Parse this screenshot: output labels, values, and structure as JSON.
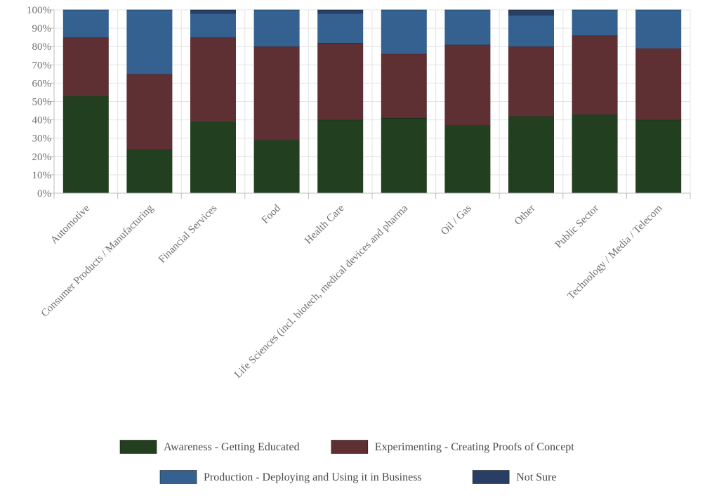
{
  "chart_data": {
    "type": "bar",
    "stacked": true,
    "title": "",
    "xlabel": "",
    "ylabel": "",
    "ylim": [
      0,
      100
    ],
    "y_ticks": [
      "0%",
      "10%",
      "20%",
      "30%",
      "40%",
      "50%",
      "60%",
      "70%",
      "80%",
      "90%",
      "100%"
    ],
    "grid": true,
    "legend_position": "bottom",
    "categories": [
      "Automotive",
      "Consumer Products / Manufacturing",
      "Financial Services",
      "Food",
      "Health Care",
      "Life Sciences (incl. biotech, medical devices and pharma",
      "Oil / Gas",
      "Other",
      "Public Sector",
      "Technology / Media / Telecom"
    ],
    "series": [
      {
        "name": "Awareness - Getting Educated",
        "color": "#22401f",
        "values": [
          53,
          24,
          39,
          29,
          40,
          41,
          37,
          42,
          43,
          40
        ]
      },
      {
        "name": "Experimenting - Creating Proofs of Concept",
        "color": "#5e2f33",
        "values": [
          32,
          41,
          46,
          51,
          42,
          35,
          44,
          38,
          43,
          39
        ]
      },
      {
        "name": "Production - Deploying and Using it in Business",
        "color": "#34618f",
        "values": [
          15,
          35,
          13,
          20,
          16,
          24,
          19,
          17,
          14,
          21
        ]
      },
      {
        "name": "Not Sure",
        "color": "#283e64",
        "values": [
          0,
          0,
          2,
          0,
          2,
          0,
          0,
          3,
          0,
          0
        ]
      }
    ]
  }
}
